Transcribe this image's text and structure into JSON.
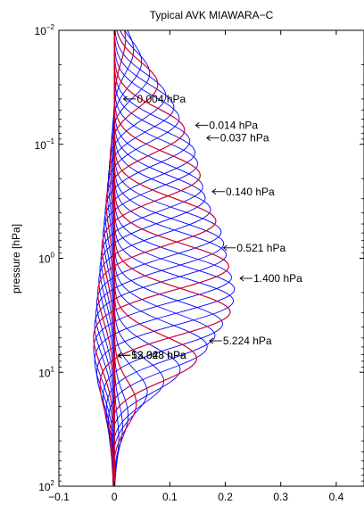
{
  "chart_data": {
    "type": "line",
    "title": "Typical AVK MIAWARA−C",
    "xlabel": "",
    "ylabel": "pressure [hPa]",
    "xlim": [
      -0.1,
      0.45
    ],
    "ylim": [
      0.01,
      100
    ],
    "y_scale": "log",
    "y_reversed": true,
    "grid": false,
    "legend": "none",
    "x_ticks": [
      -0.1,
      0,
      0.1,
      0.2,
      0.3,
      0.4
    ],
    "x_tick_labels": [
      "−0.1",
      "0",
      "0.1",
      "0.2",
      "0.3",
      "0.4"
    ],
    "y_ticks": [
      {
        "value": 0.01,
        "base": "10",
        "exp": "−2"
      },
      {
        "value": 0.1,
        "base": "10",
        "exp": "−1"
      },
      {
        "value": 1,
        "base": "10",
        "exp": "0"
      },
      {
        "value": 10,
        "base": "10",
        "exp": "1"
      },
      {
        "value": 100,
        "base": "10",
        "exp": "2"
      }
    ],
    "colors": {
      "regular": "#0000ff",
      "highlight": "#cc0033"
    },
    "n_kernels": 36,
    "highlight_every": 4,
    "kernel_peak_pressures": [
      0.012,
      0.015,
      0.019,
      0.024,
      0.03,
      0.038,
      0.048,
      0.06,
      0.076,
      0.095,
      0.12,
      0.15,
      0.19,
      0.24,
      0.3,
      0.38,
      0.48,
      0.6,
      0.76,
      0.95,
      1.2,
      1.5,
      1.9,
      2.4,
      3.0,
      3.8,
      4.8,
      6.0,
      7.6,
      9.5,
      12,
      15,
      19,
      24,
      30,
      38
    ],
    "kernel_peak_values": [
      0.02,
      0.035,
      0.05,
      0.065,
      0.08,
      0.095,
      0.11,
      0.12,
      0.13,
      0.14,
      0.15,
      0.155,
      0.16,
      0.165,
      0.17,
      0.18,
      0.19,
      0.2,
      0.205,
      0.21,
      0.215,
      0.22,
      0.225,
      0.222,
      0.215,
      0.2,
      0.185,
      0.17,
      0.15,
      0.12,
      0.09,
      0.06,
      0.04,
      0.025,
      0.015,
      0.008
    ],
    "kernel_negative_values": [
      0.0,
      -0.002,
      -0.004,
      -0.006,
      -0.008,
      -0.01,
      -0.012,
      -0.014,
      -0.016,
      -0.018,
      -0.02,
      -0.022,
      -0.024,
      -0.026,
      -0.028,
      -0.03,
      -0.032,
      -0.034,
      -0.036,
      -0.038,
      -0.04,
      -0.04,
      -0.038,
      -0.034,
      -0.028,
      -0.022,
      -0.016,
      -0.012,
      -0.008,
      -0.006,
      -0.004,
      -0.003,
      -0.002,
      -0.001,
      -0.001,
      0.0
    ],
    "kernel_width_decades": 0.28,
    "annotations": [
      {
        "label": "0.004 hPa",
        "x": 0.015,
        "y": 0.04
      },
      {
        "label": "0.014 hPa",
        "x": 0.145,
        "y": 0.068
      },
      {
        "label": "0.037 hPa",
        "x": 0.165,
        "y": 0.088
      },
      {
        "label": "0.140 hPa",
        "x": 0.175,
        "y": 0.26
      },
      {
        "label": "0.521 hPa",
        "x": 0.195,
        "y": 0.81
      },
      {
        "label": "1.400 hPa",
        "x": 0.225,
        "y": 1.5
      },
      {
        "label": "5.224 hPa",
        "x": 0.17,
        "y": 5.3
      },
      {
        "label": "52.343 hPa",
        "x": 0.005,
        "y": 7.1
      },
      {
        "label": "13.028 hPa",
        "x": 0.005,
        "y": 7.1
      }
    ]
  }
}
